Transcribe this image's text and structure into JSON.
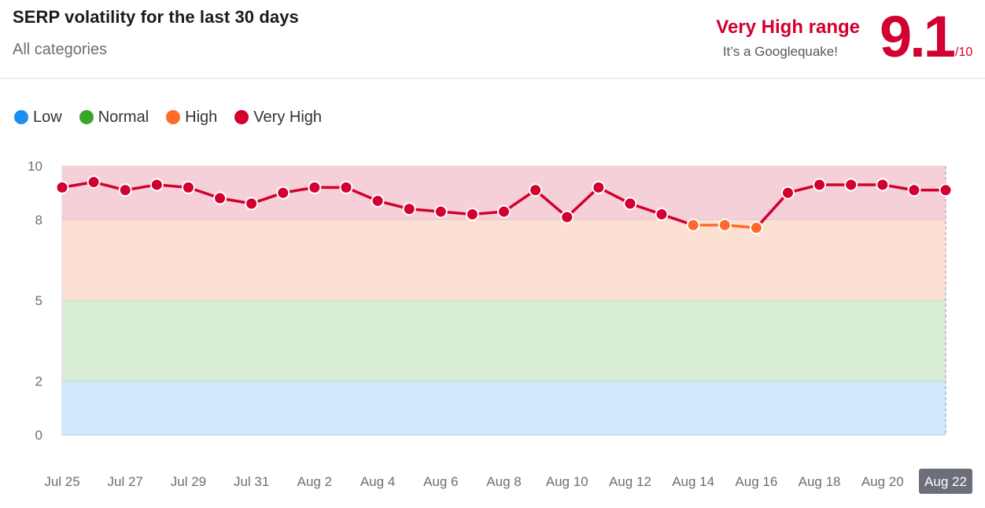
{
  "header": {
    "title": "SERP volatility for the last 30 days",
    "subtitle": "All categories",
    "range_label": "Very High range",
    "range_desc": "It’s a Googlequake!",
    "score": "9.1",
    "score_max": "/10"
  },
  "legend": [
    {
      "label": "Low",
      "color": "#1a91f0"
    },
    {
      "label": "Normal",
      "color": "#3aa629"
    },
    {
      "label": "High",
      "color": "#ff6b2b"
    },
    {
      "label": "Very High",
      "color": "#d1002f"
    }
  ],
  "chart_data": {
    "type": "line",
    "title": "SERP volatility for the last 30 days",
    "ylim": [
      0,
      10
    ],
    "yticks": [
      0,
      2,
      5,
      8,
      10
    ],
    "bands": [
      {
        "name": "Low",
        "from": 0,
        "to": 2,
        "color": "#cfe8fb"
      },
      {
        "name": "Normal",
        "from": 2,
        "to": 5,
        "color": "#d8ecd4"
      },
      {
        "name": "High",
        "from": 5,
        "to": 8,
        "color": "#fde0d4"
      },
      {
        "name": "Very High",
        "from": 8,
        "to": 10,
        "color": "#f5d0d8"
      }
    ],
    "xtick_labels": [
      "Jul 25",
      "Jul 27",
      "Jul 29",
      "Jul 31",
      "Aug 2",
      "Aug 4",
      "Aug 6",
      "Aug 8",
      "Aug 10",
      "Aug 12",
      "Aug 14",
      "Aug 16",
      "Aug 18",
      "Aug 20",
      "Aug 22"
    ],
    "active_label": "Aug 22",
    "x": [
      "Jul 25",
      "Jul 26",
      "Jul 27",
      "Jul 28",
      "Jul 29",
      "Jul 30",
      "Jul 31",
      "Aug 1",
      "Aug 2",
      "Aug 3",
      "Aug 4",
      "Aug 5",
      "Aug 6",
      "Aug 7",
      "Aug 8",
      "Aug 9",
      "Aug 10",
      "Aug 11",
      "Aug 12",
      "Aug 13",
      "Aug 14",
      "Aug 15",
      "Aug 16",
      "Aug 17",
      "Aug 18",
      "Aug 19",
      "Aug 20",
      "Aug 21",
      "Aug 22"
    ],
    "values": [
      9.2,
      9.4,
      9.1,
      9.3,
      9.2,
      8.8,
      8.6,
      9.0,
      9.2,
      9.2,
      8.7,
      8.4,
      8.3,
      8.2,
      8.3,
      9.1,
      8.1,
      9.2,
      8.6,
      8.2,
      7.8,
      7.8,
      7.7,
      9.0,
      9.3,
      9.3,
      9.3,
      9.1,
      9.1
    ],
    "series_color": "#d1002f",
    "high_color": "#ff6b2b",
    "high_threshold": 8
  }
}
